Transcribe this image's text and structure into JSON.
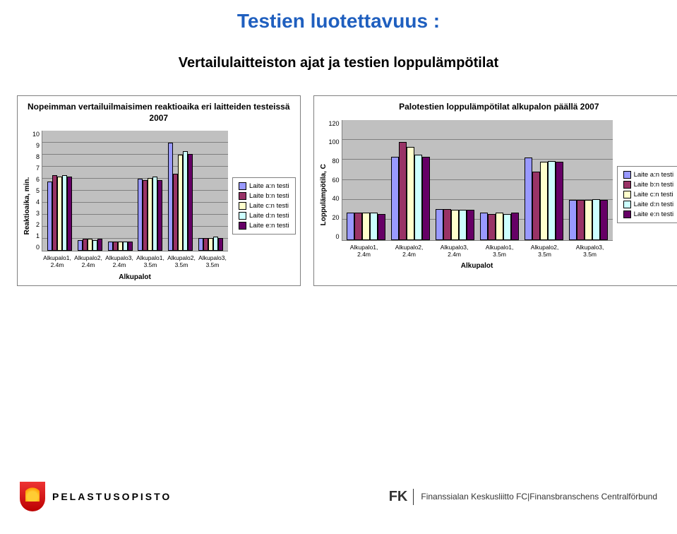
{
  "page_title": "Testien luotettavuus :",
  "subtitle": "Vertailulaitteiston ajat ja testien loppulämpötilat",
  "legend_series": [
    {
      "label": "Laite a:n testi",
      "color": "#9999ff"
    },
    {
      "label": "Laite b:n testi",
      "color": "#993366"
    },
    {
      "label": "Laite c:n testi",
      "color": "#ffffcc"
    },
    {
      "label": "Laite d:n testi",
      "color": "#ccffff"
    },
    {
      "label": "Laite e:n testi",
      "color": "#660066"
    }
  ],
  "chart1": {
    "title": "Nopeimman vertailuilmaisimen reaktioaika eri laitteiden testeissä 2007",
    "y_label": "Reaktioaika, min.",
    "x_label": "Alkupalot",
    "y_min": 0,
    "y_max": 10,
    "y_step": 1,
    "background": "#c0c0c0",
    "grid_color": "#808080",
    "categories": [
      "Alkupalo1, 2.4m",
      "Alkupalo2, 2.4m",
      "Alkupalo3, 2.4m",
      "Alkupalo1, 3.5m",
      "Alkupalo2, 3.5m",
      "Alkupalo3, 3.5m"
    ],
    "values": [
      [
        5.8,
        6.3,
        6.2,
        6.3,
        6.2
      ],
      [
        0.9,
        1.0,
        1.0,
        0.9,
        1.0
      ],
      [
        0.8,
        0.8,
        0.8,
        0.8,
        0.8
      ],
      [
        6.0,
        5.9,
        6.1,
        6.2,
        5.9
      ],
      [
        9.0,
        6.4,
        8.0,
        8.3,
        8.1
      ],
      [
        1.1,
        1.1,
        1.1,
        1.2,
        1.1
      ]
    ]
  },
  "chart2": {
    "title": "Palotestien loppulämpötilat alkupalon päällä 2007",
    "y_label": "Loppulämpötila, C",
    "x_label": "Alkupalot",
    "y_min": 0,
    "y_max": 120,
    "y_step": 20,
    "background": "#c0c0c0",
    "grid_color": "#808080",
    "categories": [
      "Alkupalo1, 2.4m",
      "Alkupalo2, 2.4m",
      "Alkupalo3, 2.4m",
      "Alkupalo1, 3.5m",
      "Alkupalo2, 3.5m",
      "Alkupalo3, 3.5m"
    ],
    "values": [
      [
        27,
        27,
        27,
        27,
        26
      ],
      [
        83,
        98,
        93,
        85,
        83
      ],
      [
        31,
        31,
        30,
        30,
        30
      ],
      [
        27,
        26,
        27,
        26,
        27
      ],
      [
        82,
        68,
        78,
        79,
        78
      ],
      [
        40,
        40,
        40,
        41,
        40
      ]
    ]
  },
  "footer": {
    "left_brand": "PELASTUSOPISTO",
    "right_mark": "FK",
    "right_text": "Finanssialan Keskusliitto FC|Finansbranschens Centralförbund"
  }
}
